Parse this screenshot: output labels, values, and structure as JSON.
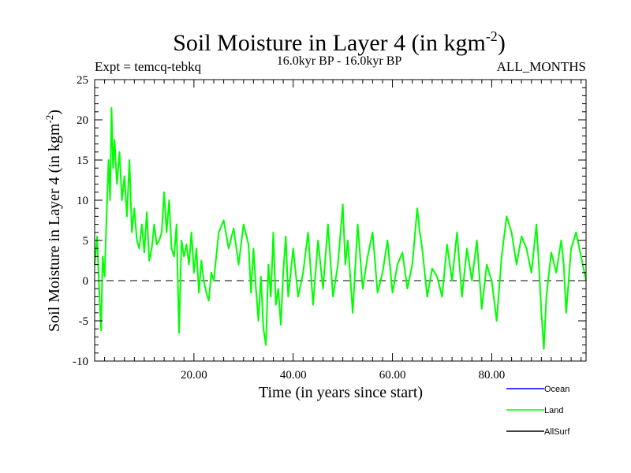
{
  "chart_data": {
    "type": "line",
    "title": "Soil Moisture in Layer 4 (in kgm",
    "title_sup": "-2",
    "title_close": ")",
    "subtitle": "16.0kyr BP - 16.0kyr BP",
    "experiment_label": "Expt = temcq-tebkq",
    "months_label": "ALL_MONTHS",
    "xlabel": "Time (in years since start)",
    "ylabel": "Soil Moisture in Layer 4 (in kgm",
    "ylabel_sup": "-2",
    "ylabel_close": ")",
    "xlim": [
      0,
      99
    ],
    "ylim": [
      -10,
      25
    ],
    "x_ticks": [
      20,
      40,
      60,
      80
    ],
    "x_tick_labels": [
      "20.00",
      "40.00",
      "60.00",
      "80.00"
    ],
    "y_ticks": [
      -10,
      -5,
      0,
      5,
      10,
      15,
      20,
      25
    ],
    "y_tick_labels": [
      "-10",
      "-5",
      "0",
      "5",
      "10",
      "15",
      "20",
      "25"
    ],
    "zero_line": true,
    "legend": [
      {
        "name": "Ocean",
        "color": "#0000ff"
      },
      {
        "name": "Land",
        "color": "#00ff00"
      },
      {
        "name": "AllSurf",
        "color": "#000000"
      }
    ],
    "series": [
      {
        "name": "Land",
        "color": "#00ff00",
        "x": [
          0.0,
          0.5,
          0.9,
          1.3,
          1.6,
          2.0,
          2.4,
          2.8,
          3.1,
          3.4,
          3.7,
          4.0,
          4.5,
          5.0,
          5.5,
          6.0,
          6.5,
          7.0,
          7.5,
          8.0,
          8.5,
          9.0,
          9.5,
          10.0,
          10.5,
          11.0,
          11.5,
          12.0,
          12.5,
          13.0,
          13.5,
          14.0,
          14.5,
          15.0,
          15.5,
          16.0,
          16.5,
          17.0,
          17.5,
          18.0,
          18.5,
          19.0,
          19.5,
          20.0,
          20.5,
          21.0,
          21.5,
          22.0,
          22.5,
          23.0,
          23.5,
          24.0,
          25.0,
          26.0,
          27.0,
          28.0,
          29.0,
          30.0,
          31.0,
          31.5,
          32.0,
          32.5,
          33.0,
          33.5,
          34.0,
          34.5,
          35.0,
          35.5,
          36.0,
          36.5,
          37.0,
          37.5,
          38.0,
          38.5,
          39.0,
          40.0,
          41.0,
          42.0,
          43.0,
          44.0,
          45.0,
          46.0,
          47.0,
          48.0,
          49.0,
          50.0,
          50.5,
          51.0,
          52.0,
          53.0,
          54.0,
          55.0,
          56.0,
          57.0,
          58.0,
          59.0,
          60.0,
          61.0,
          62.0,
          63.0,
          64.0,
          65.0,
          65.5,
          66.0,
          67.0,
          68.0,
          69.0,
          70.0,
          71.0,
          72.0,
          73.0,
          74.0,
          75.0,
          76.0,
          77.0,
          78.0,
          79.0,
          80.0,
          81.0,
          82.0,
          83.0,
          84.0,
          85.0,
          86.0,
          87.0,
          88.0,
          89.0,
          89.5,
          90.0,
          90.5,
          91.0,
          92.0,
          93.0,
          94.0,
          94.5,
          95.0,
          96.0,
          97.0,
          98.0,
          99.0
        ],
        "values": [
          2.0,
          5.5,
          -1.0,
          -6.2,
          3.0,
          0.5,
          8.0,
          15.0,
          10.0,
          21.5,
          14.0,
          17.5,
          12.0,
          16.0,
          10.0,
          13.0,
          8.0,
          15.0,
          6.0,
          9.0,
          5.0,
          4.0,
          7.0,
          3.5,
          8.5,
          2.5,
          4.0,
          7.0,
          4.5,
          5.0,
          6.0,
          11.0,
          6.0,
          10.0,
          4.0,
          3.0,
          7.0,
          -6.5,
          5.0,
          3.0,
          4.5,
          2.0,
          6.0,
          1.0,
          4.0,
          -1.5,
          2.5,
          0.0,
          -1.5,
          -2.5,
          1.0,
          0.0,
          6.0,
          7.5,
          4.0,
          6.5,
          2.0,
          7.0,
          4.5,
          -1.5,
          4.0,
          -1.0,
          -5.0,
          0.5,
          -6.0,
          -8.0,
          2.0,
          -2.0,
          6.0,
          -3.0,
          -1.0,
          -5.5,
          1.0,
          5.5,
          -2.0,
          4.0,
          -2.0,
          1.0,
          6.0,
          -3.0,
          5.0,
          -1.0,
          7.0,
          -2.0,
          2.0,
          9.5,
          2.0,
          5.0,
          -4.0,
          7.0,
          -1.0,
          3.0,
          6.0,
          -1.5,
          1.0,
          5.0,
          -1.5,
          2.0,
          3.5,
          -1.0,
          2.0,
          9.0,
          6.0,
          4.0,
          -2.0,
          1.5,
          0.5,
          -2.0,
          4.5,
          0.0,
          6.0,
          -2.0,
          4.0,
          0.0,
          5.0,
          -3.5,
          2.0,
          0.0,
          -5.0,
          3.0,
          8.0,
          6.0,
          2.0,
          5.5,
          4.0,
          1.0,
          7.0,
          2.0,
          -4.0,
          -8.5,
          -2.0,
          3.5,
          1.0,
          5.0,
          2.0,
          -4.0,
          4.0,
          6.0,
          3.0,
          0.0
        ]
      }
    ]
  }
}
